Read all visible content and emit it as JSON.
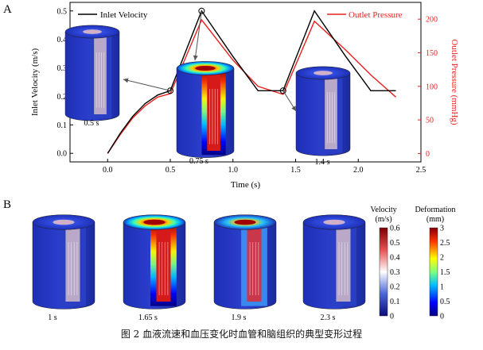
{
  "figure": {
    "panel_a_label": "A",
    "panel_b_label": "B",
    "caption": "图 2 血液流速和血压变化时血管和脑组织的典型变形过程"
  },
  "chart_data": [
    {
      "type": "line",
      "panel": "A",
      "xlabel": "Time (s)",
      "ylabel": "Inlet Velocity (m/s)",
      "y2label": "Outlet Pressure (mmHg)",
      "xlim": [
        -0.3,
        2.5
      ],
      "ylim": [
        -0.03,
        0.53
      ],
      "y2lim": [
        -12.5,
        225
      ],
      "xticks": [
        "0.0",
        "0.5",
        "1.0",
        "1.5",
        "2.0",
        "2.5"
      ],
      "xtick_values": [
        0,
        0.5,
        1.0,
        1.5,
        2.0,
        2.5
      ],
      "yticks": [
        "0.0",
        "0.1",
        "0.2",
        "0.3",
        "0.4",
        "0.5"
      ],
      "ytick_values": [
        0,
        0.1,
        0.2,
        0.3,
        0.4,
        0.5
      ],
      "y2ticks": [
        "0",
        "50",
        "100",
        "150",
        "200"
      ],
      "y2tick_values": [
        0,
        50,
        100,
        150,
        200
      ],
      "legend_placement": "top",
      "series": [
        {
          "name": "Inlet Velocity",
          "axis": "left",
          "color": "#000000",
          "x": [
            0,
            0.1,
            0.2,
            0.3,
            0.4,
            0.5,
            0.75,
            1.0,
            1.2,
            1.4,
            1.65,
            1.9,
            2.1,
            2.3
          ],
          "y": [
            0.0,
            0.07,
            0.13,
            0.175,
            0.205,
            0.22,
            0.5,
            0.34,
            0.22,
            0.22,
            0.5,
            0.34,
            0.22,
            0.22
          ]
        },
        {
          "name": "Outlet Pressure",
          "axis": "right",
          "color": "#e8201f",
          "x": [
            0,
            0.1,
            0.2,
            0.3,
            0.4,
            0.5,
            0.75,
            1.0,
            1.2,
            1.4,
            1.65,
            1.9,
            2.1,
            2.3
          ],
          "y": [
            0,
            28,
            53,
            71,
            84,
            89,
            199,
            139,
            100,
            88,
            197,
            154,
            117,
            84
          ]
        }
      ],
      "insets": [
        {
          "label": "0.5 s",
          "time": 0.5,
          "level": 0.08
        },
        {
          "label": "0.75 s",
          "time": 0.75,
          "level": 0.95
        },
        {
          "label": "1.4 s",
          "time": 1.4,
          "level": 0.05
        }
      ]
    },
    {
      "type": "heatmap",
      "panel": "B",
      "frames": [
        {
          "label": "1 s",
          "level": 0.12
        },
        {
          "label": "1.65 s",
          "level": 0.95
        },
        {
          "label": "1.9 s",
          "level": 0.55
        },
        {
          "label": "2.3 s",
          "level": 0.05
        }
      ],
      "colorbars": [
        {
          "title": "Velocity",
          "units": "(m/s)",
          "ticks": [
            "0.6",
            "0.5",
            "0.4",
            "0.3",
            "0.2",
            "0.1",
            "0"
          ]
        },
        {
          "title": "Deformation",
          "units": "(mm)",
          "ticks": [
            "3",
            "2.5",
            "2",
            "1.5",
            "1",
            "0.5",
            "0"
          ]
        }
      ]
    }
  ]
}
